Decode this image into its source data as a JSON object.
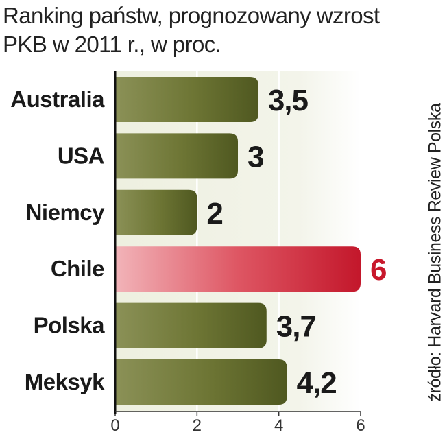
{
  "chart_data": {
    "type": "bar",
    "orientation": "horizontal",
    "title": "Ranking państw, prognozowany wzrost PKB w 2011 r., w proc.",
    "title_lines": [
      "Ranking państw, prognozowany wzrost",
      "PKB w 2011 r., w proc."
    ],
    "categories": [
      "Australia",
      "USA",
      "Niemcy",
      "Chile",
      "Polska",
      "Meksyk"
    ],
    "values": [
      3.5,
      3,
      2,
      6,
      3.7,
      4.2
    ],
    "value_labels": [
      "3,5",
      "3",
      "2",
      "6",
      "3,7",
      "4,2"
    ],
    "highlight": "Chile",
    "xlim": [
      0,
      6
    ],
    "x_ticks": [
      "0",
      "2",
      "4",
      "6"
    ],
    "grid": true,
    "colors": {
      "bar": "#5a6426",
      "bar_light": "#8a9154",
      "highlight": "#c8182c",
      "highlight_light": "#f0a8ae",
      "highlight_label": "#c8182c",
      "label": "#1a1a1a",
      "background_band": "#eceee0"
    },
    "source": "źródło: Harvard Business Review Polska"
  }
}
